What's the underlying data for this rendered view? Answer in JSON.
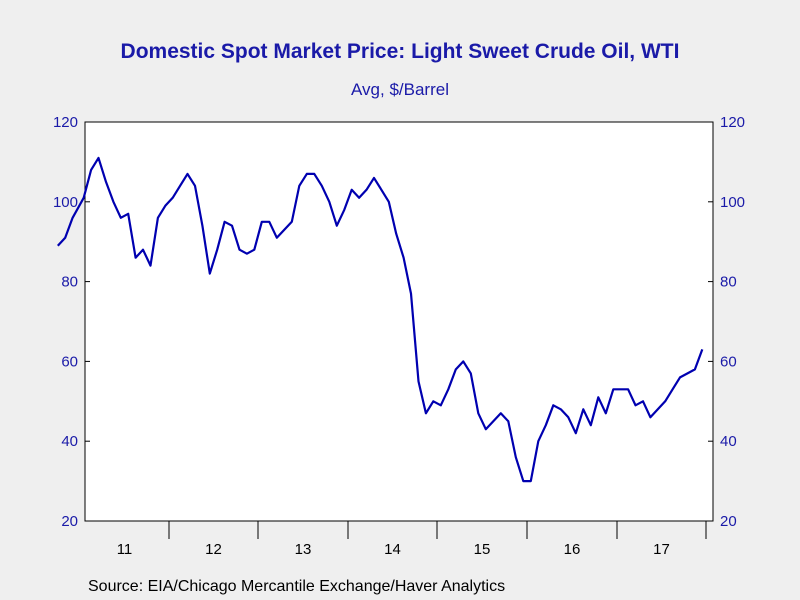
{
  "chart_data": {
    "type": "line",
    "title": "Domestic Spot Market Price: Light Sweet Crude Oil, WTI",
    "subtitle": "Avg, $/Barrel",
    "source": "Source:  EIA/Chicago Mercantile Exchange/Haver Analytics",
    "xlabel": "",
    "ylabel": "",
    "ylim": [
      20,
      120
    ],
    "y_ticks": [
      20,
      40,
      60,
      80,
      100,
      120
    ],
    "y_tick_labels": [
      "20",
      "40",
      "60",
      "80",
      "100",
      "120"
    ],
    "x_categories": [
      "11",
      "12",
      "13",
      "14",
      "15",
      "16",
      "17"
    ],
    "grid": false,
    "line_color": "#0000b0",
    "series": [
      {
        "name": "",
        "x": [
          "2010-10",
          "2010-11",
          "2010-12",
          "2011-01",
          "2011-02",
          "2011-03",
          "2011-04",
          "2011-05",
          "2011-06",
          "2011-07",
          "2011-08",
          "2011-09",
          "2011-10",
          "2011-11",
          "2011-12",
          "2012-01",
          "2012-02",
          "2012-03",
          "2012-04",
          "2012-05",
          "2012-06",
          "2012-07",
          "2012-08",
          "2012-09",
          "2012-10",
          "2012-11",
          "2012-12",
          "2013-01",
          "2013-02",
          "2013-03",
          "2013-04",
          "2013-05",
          "2013-06",
          "2013-07",
          "2013-08",
          "2013-09",
          "2013-10",
          "2013-11",
          "2013-12",
          "2014-01",
          "2014-02",
          "2014-03",
          "2014-04",
          "2014-05",
          "2014-06",
          "2014-07",
          "2014-08",
          "2014-09",
          "2014-10",
          "2014-11",
          "2014-12",
          "2015-01",
          "2015-02",
          "2015-03",
          "2015-04",
          "2015-05",
          "2015-06",
          "2015-07",
          "2015-08",
          "2015-09",
          "2015-10",
          "2015-11",
          "2015-12",
          "2016-01",
          "2016-02",
          "2016-03",
          "2016-04",
          "2016-05",
          "2016-06",
          "2016-07",
          "2016-08",
          "2016-09",
          "2016-10",
          "2016-11",
          "2016-12",
          "2017-01",
          "2017-02",
          "2017-03",
          "2017-04",
          "2017-05",
          "2017-06",
          "2017-07",
          "2017-08",
          "2017-09",
          "2017-10",
          "2017-11",
          "2017-12"
        ],
        "values": [
          89,
          91,
          96,
          101,
          108,
          111,
          105,
          100,
          96,
          97,
          86,
          88,
          84,
          96,
          99,
          101,
          104,
          107,
          104,
          94,
          82,
          88,
          95,
          94,
          88,
          87,
          88,
          95,
          95,
          91,
          93,
          95,
          104,
          107,
          107,
          104,
          100,
          94,
          98,
          103,
          101,
          103,
          106,
          103,
          100,
          92,
          86,
          77,
          55,
          47,
          50,
          49,
          53,
          58,
          60,
          57,
          47,
          43,
          45,
          47,
          45,
          36,
          30,
          30,
          40,
          44,
          49,
          48,
          46,
          42,
          48,
          44,
          51,
          47,
          53,
          53,
          53,
          49,
          50,
          46,
          48,
          50,
          53,
          56,
          57,
          58,
          63
        ]
      }
    ]
  }
}
